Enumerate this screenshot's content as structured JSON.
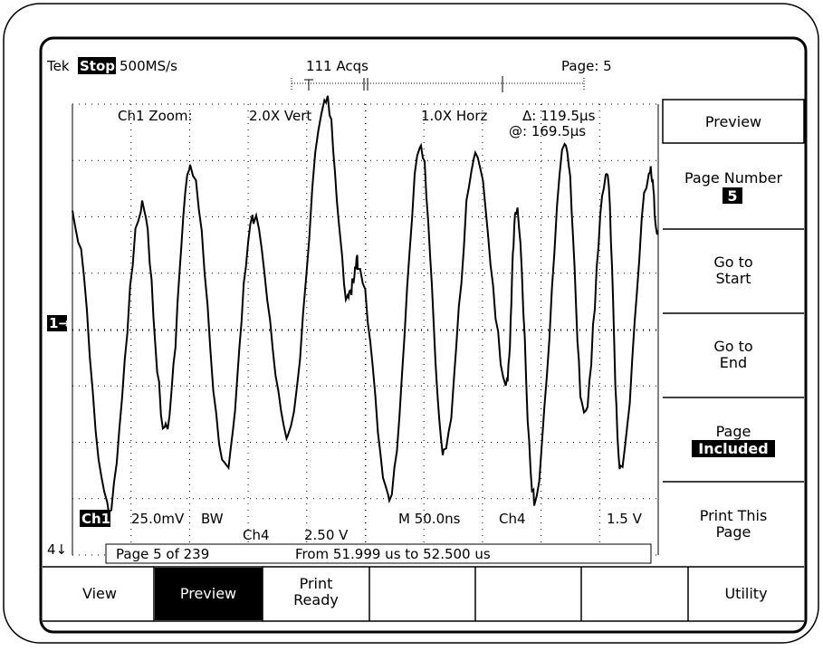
{
  "top_bar": {
    "brand": "Tek",
    "state": "Stop:",
    "rate": "500MS/s",
    "acquisitions": "111 Acqs",
    "page": "Page: 5"
  },
  "readout": {
    "zoom": "Ch1 Zoom:",
    "vert": "2.0X Vert",
    "horz": "1.0X Horz",
    "delta": "Δ: 119.5µs",
    "at": "@: 169.5µs"
  },
  "status": {
    "ch1": "Ch1",
    "ch1_scale": "25.0mV",
    "bw": "BW",
    "ch4": "Ch4",
    "ch4_scale": "2.50 V",
    "timebase": "M 50.0ns",
    "trigger_source": "Ch4",
    "trigger_level": "1.5 V"
  },
  "page_bar": {
    "page": "Page 5 of 239",
    "range": "From 51.999 us to 52.500 us"
  },
  "markers": {
    "ch1": "1→",
    "ch4": "4↓"
  },
  "side_menu": {
    "title": "Preview",
    "page_number": {
      "label": "Page Number",
      "value": "5"
    },
    "go_start": [
      "Go to",
      "Start"
    ],
    "go_end": [
      "Go to",
      "End"
    ],
    "page_state": {
      "label": "Page",
      "value": "Included"
    },
    "print_page": [
      "Print This",
      "Page"
    ]
  },
  "bottom_menu": {
    "view": "View",
    "preview": "Preview",
    "print_ready": [
      "Print",
      "Ready"
    ],
    "utility": "Utility"
  }
}
